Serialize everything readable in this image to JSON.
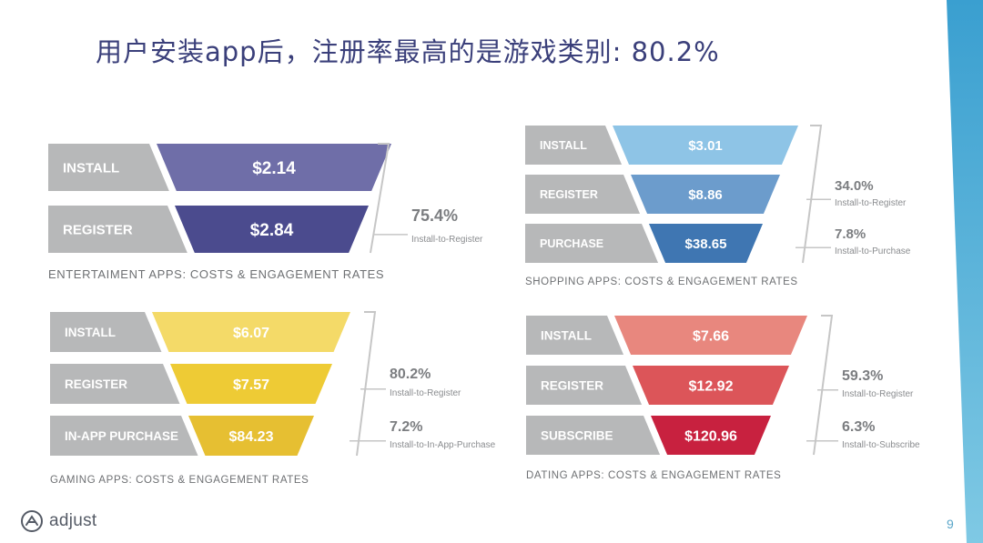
{
  "title": "用户安装app后，注册率最高的是游戏类别: 80.2%",
  "page_number": "9",
  "logo_text": "adjust",
  "icons": {
    "logo": "adjust-logo-icon"
  },
  "funnels": [
    {
      "caption": "ENTERTAIMENT APPS: COSTS & ENGAGEMENT RATES",
      "colors": [
        "#6f6ea8",
        "#4b4b8e"
      ],
      "stages": [
        {
          "label": "INSTALL",
          "value": "$2.14"
        },
        {
          "label": "REGISTER",
          "value": "$2.84"
        }
      ],
      "rates": [
        {
          "value": "75.4%",
          "label": "Install-to-Register"
        }
      ]
    },
    {
      "caption": "SHOPPING APPS: COSTS & ENGAGEMENT RATES",
      "colors": [
        "#8ec4e6",
        "#6c9ccc",
        "#3f76b2"
      ],
      "stages": [
        {
          "label": "INSTALL",
          "value": "$3.01"
        },
        {
          "label": "REGISTER",
          "value": "$8.86"
        },
        {
          "label": "PURCHASE",
          "value": "$38.65"
        }
      ],
      "rates": [
        {
          "value": "34.0%",
          "label": "Install-to-Register"
        },
        {
          "value": "7.8%",
          "label": "Install-to-Purchase"
        }
      ]
    },
    {
      "caption": "GAMING APPS: COSTS & ENGAGEMENT RATES",
      "colors": [
        "#f4da68",
        "#eecb35",
        "#e6bf32"
      ],
      "stages": [
        {
          "label": "INSTALL",
          "value": "$6.07"
        },
        {
          "label": "REGISTER",
          "value": "$7.57"
        },
        {
          "label": "IN-APP PURCHASE",
          "value": "$84.23"
        }
      ],
      "rates": [
        {
          "value": "80.2%",
          "label": "Install-to-Register"
        },
        {
          "value": "7.2%",
          "label": "Install-to-In-App-Purchase"
        }
      ]
    },
    {
      "caption": "DATING APPS: COSTS & ENGAGEMENT RATES",
      "colors": [
        "#e8877e",
        "#dc5559",
        "#c8213f"
      ],
      "stages": [
        {
          "label": "INSTALL",
          "value": "$7.66"
        },
        {
          "label": "REGISTER",
          "value": "$12.92"
        },
        {
          "label": "SUBSCRIBE",
          "value": "$120.96"
        }
      ],
      "rates": [
        {
          "value": "59.3%",
          "label": "Install-to-Register"
        },
        {
          "value": "6.3%",
          "label": "Install-to-Subscribe"
        }
      ]
    }
  ]
}
